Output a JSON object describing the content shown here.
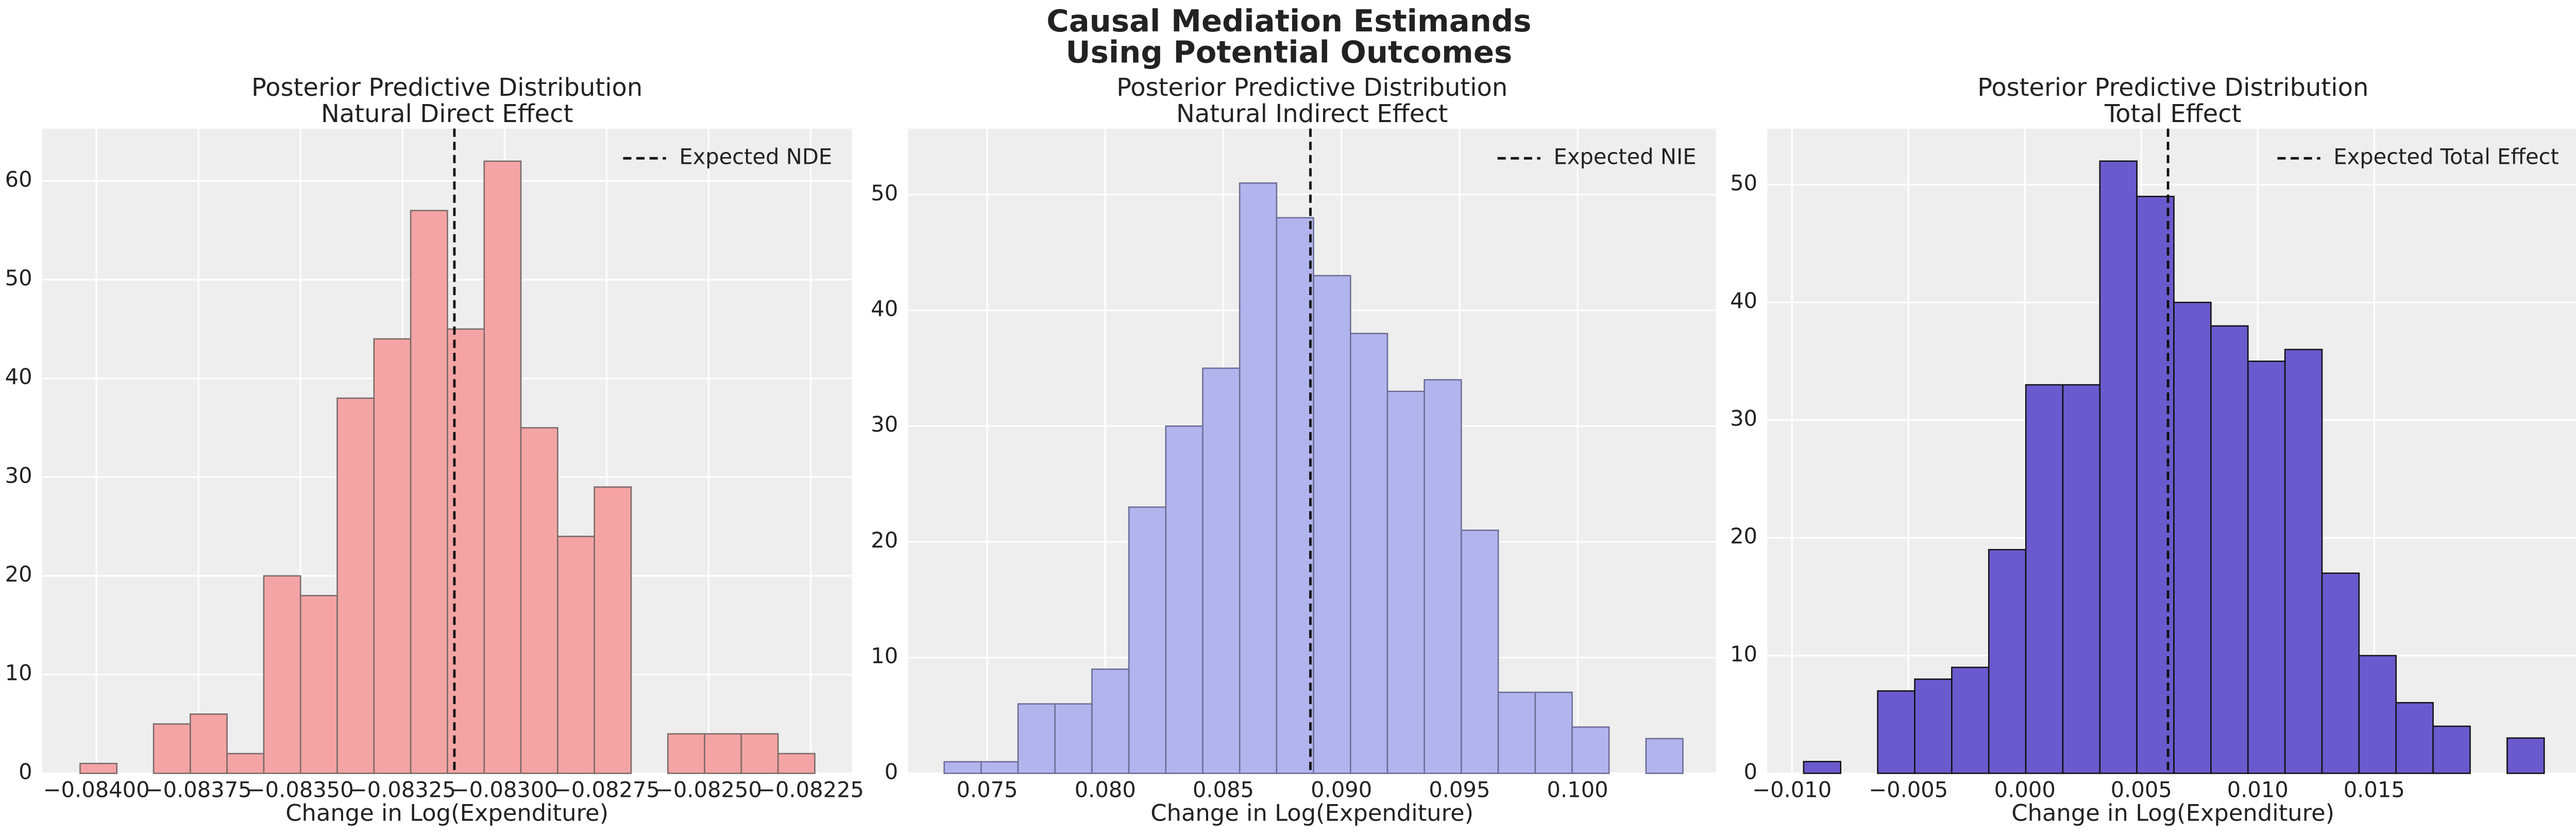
{
  "title": [
    "Causal Mediation Estimands",
    "Using Potential Outcomes"
  ],
  "chart_data": [
    {
      "type": "histogram",
      "title": [
        "Posterior Predictive Distribution",
        "Natural Direct Effect"
      ],
      "xlabel": "Change in Log(Expenditure)",
      "bins": [
        -0.08404,
        -0.08395,
        -0.08386,
        -0.08377,
        -0.08368,
        -0.08359,
        -0.0835,
        -0.08341,
        -0.08332,
        -0.08323,
        -0.08314,
        -0.08305,
        -0.08296,
        -0.08287,
        -0.08278,
        -0.08269,
        -0.0826,
        -0.08251,
        -0.08242,
        -0.08233,
        -0.08224
      ],
      "values": [
        1,
        0,
        5,
        6,
        2,
        20,
        18,
        38,
        44,
        57,
        45,
        62,
        35,
        24,
        29,
        0,
        4,
        4,
        4,
        2
      ],
      "color": "#f4a4a4",
      "edgecolor": "#7a6a6a",
      "xlim": [
        -0.084133,
        -0.082149
      ],
      "ylim": [
        0,
        65.3
      ],
      "xticks": [
        {
          "value": -0.084,
          "label": "−0.08400"
        },
        {
          "value": -0.08375,
          "label": "−0.08375"
        },
        {
          "value": -0.0835,
          "label": "−0.08350"
        },
        {
          "value": -0.08325,
          "label": "−0.08325"
        },
        {
          "value": -0.083,
          "label": "−0.08300"
        },
        {
          "value": -0.08275,
          "label": "−0.08275"
        },
        {
          "value": -0.0825,
          "label": "−0.08250"
        },
        {
          "value": -0.08225,
          "label": "−0.08225"
        }
      ],
      "yticks": [
        0,
        10,
        20,
        30,
        40,
        50,
        60
      ],
      "grid": true,
      "legend": "upper right",
      "vline": {
        "x": -0.083123,
        "label": "Expected NDE",
        "color": "#111111"
      }
    },
    {
      "type": "histogram",
      "title": [
        "Posterior Predictive Distribution",
        "Natural Indirect Effect"
      ],
      "xlabel": "Change in Log(Expenditure)",
      "bins": [
        0.07318,
        0.074744,
        0.076308,
        0.077872,
        0.079436,
        0.081,
        0.082564,
        0.084128,
        0.085692,
        0.087256,
        0.08882,
        0.090384,
        0.091948,
        0.093512,
        0.095076,
        0.09664,
        0.098204,
        0.099768,
        0.101332,
        0.102896,
        0.10446
      ],
      "values": [
        1,
        1,
        6,
        6,
        9,
        23,
        30,
        35,
        51,
        48,
        43,
        38,
        33,
        34,
        21,
        7,
        7,
        4,
        0,
        3
      ],
      "color": "#b2b4ee",
      "edgecolor": "#6c6c94",
      "xlim": [
        0.071648,
        0.105866
      ],
      "ylim": [
        0,
        55.7
      ],
      "xticks": [
        0.075,
        {
          "value": 0.08,
          "label": "0.080"
        },
        0.085,
        {
          "value": 0.09,
          "label": "0.090"
        },
        0.095,
        {
          "value": 0.1,
          "label": "0.100"
        }
      ],
      "yticks": [
        0,
        10,
        20,
        30,
        40,
        50
      ],
      "grid": true,
      "legend": "upper right",
      "vline": {
        "x": 0.088687,
        "label": "Expected NIE",
        "color": "#111111"
      }
    },
    {
      "type": "histogram",
      "title": [
        "Posterior Predictive Distribution",
        "Total Effect"
      ],
      "xlabel": "Change in Log(Expenditure)",
      "bins": [
        -0.0095,
        -0.00791,
        -0.00632,
        -0.00473,
        -0.00314,
        -0.00155,
        4e-05,
        0.00163,
        0.00322,
        0.00481,
        0.0064,
        0.00799,
        0.00958,
        0.01117,
        0.01276,
        0.01435,
        0.01594,
        0.01753,
        0.01912,
        0.02071,
        0.0223
      ],
      "values": [
        1,
        0,
        7,
        8,
        9,
        19,
        33,
        33,
        52,
        49,
        40,
        38,
        35,
        36,
        17,
        10,
        6,
        4,
        0,
        3
      ],
      "color": "#6a5acd",
      "edgecolor": "#111111",
      "xlim": [
        -0.011062,
        0.023782
      ],
      "ylim": [
        0,
        54.76
      ],
      "xticks": [
        {
          "value": -0.01,
          "label": "−0.010"
        },
        {
          "value": -0.005,
          "label": "−0.005"
        },
        {
          "value": 0,
          "label": "0.000"
        },
        0.005,
        {
          "value": 0.01,
          "label": "0.010"
        },
        0.015
      ],
      "yticks": [
        0,
        10,
        20,
        30,
        40,
        50
      ],
      "grid": true,
      "legend": "upper right",
      "vline": {
        "x": 0.006147,
        "label": "Expected Total Effect",
        "color": "#111111"
      }
    }
  ]
}
